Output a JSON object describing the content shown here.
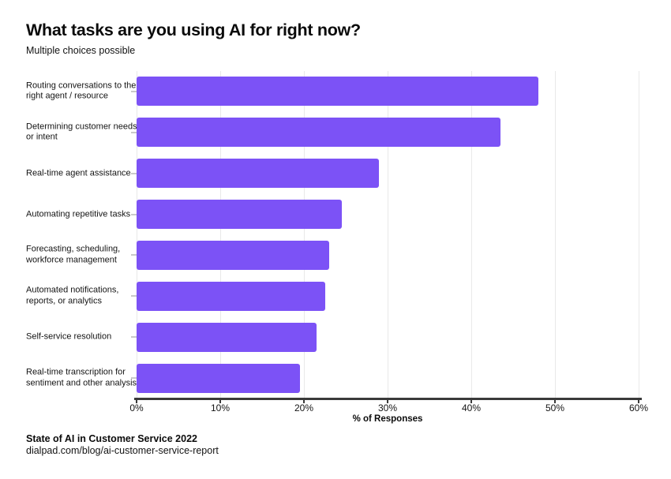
{
  "header": {
    "title": "What tasks are you using AI for right now?",
    "subtitle": "Multiple choices possible"
  },
  "chart_data": {
    "type": "bar",
    "orientation": "horizontal",
    "title": "What tasks are you using AI for right now?",
    "subtitle": "Multiple choices possible",
    "categories": [
      "Routing conversations to the right agent / resource",
      "Determining customer needs or intent",
      "Real-time agent assistance",
      "Automating repetitive tasks",
      "Forecasting, scheduling, workforce management",
      "Automated notifications, reports, or analytics",
      "Self-service resolution",
      "Real-time transcription for sentiment and other analysis"
    ],
    "values": [
      48,
      43.5,
      29,
      24.5,
      23,
      22.5,
      21.5,
      19.5
    ],
    "xlabel": "% of Responses",
    "ylabel": "",
    "xlim": [
      0,
      60
    ],
    "xtick_labels": [
      "0%",
      "10%",
      "20%",
      "30%",
      "40%",
      "50%",
      "60%"
    ],
    "xtick_values": [
      0,
      10,
      20,
      30,
      40,
      50,
      60
    ],
    "grid": true,
    "legend": false,
    "bar_color": "#7C52F6"
  },
  "footer": {
    "source": "State of AI in Customer Service 2022",
    "url": "dialpad.com/blog/ai-customer-service-report"
  }
}
